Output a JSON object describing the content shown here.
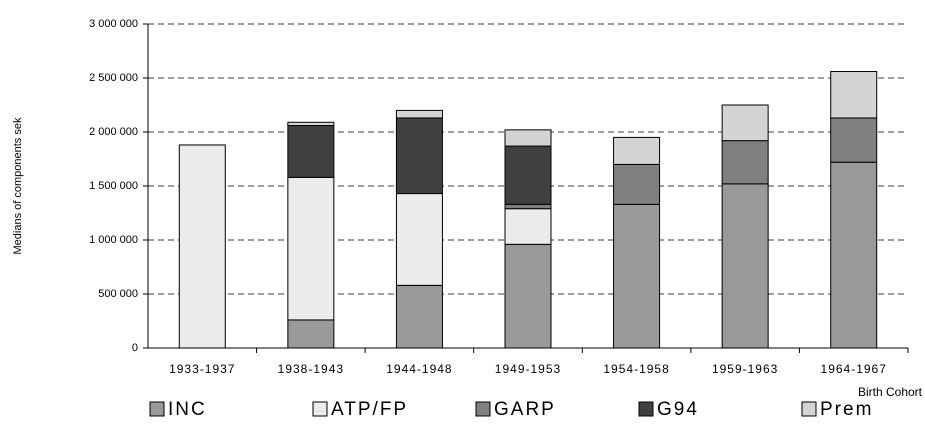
{
  "chart_data": {
    "type": "stacked-bar",
    "x_label": "Birth Cohort",
    "y_label": "Medians of components sek",
    "categories": [
      "1933-1937",
      "1938-1943",
      "1944-1948",
      "1949-1953",
      "1954-1958",
      "1959-1963",
      "1964-1967"
    ],
    "series": [
      {
        "name": "INC",
        "color": "#999999",
        "values": [
          0,
          260000,
          580000,
          960000,
          1330000,
          1520000,
          1720000
        ]
      },
      {
        "name": "ATP/FP",
        "color": "#ebebeb",
        "values": [
          1880000,
          1320000,
          850000,
          330000,
          0,
          0,
          0
        ]
      },
      {
        "name": "GARP",
        "color": "#808080",
        "values": [
          0,
          0,
          0,
          40000,
          370000,
          400000,
          410000
        ]
      },
      {
        "name": "G94",
        "color": "#404040",
        "values": [
          0,
          480000,
          700000,
          540000,
          0,
          0,
          0
        ]
      },
      {
        "name": "Prem",
        "color": "#d4d4d4",
        "values": [
          0,
          30000,
          70000,
          150000,
          250000,
          330000,
          430000
        ]
      }
    ],
    "ylim": [
      0,
      3000000
    ],
    "yticks": [
      0,
      {
        "value": 500000,
        "label": "500 000"
      },
      {
        "value": 1000000,
        "label": "1 000 000"
      },
      {
        "value": 1500000,
        "label": "1 500 000"
      },
      {
        "value": 2000000,
        "label": "2 000 000"
      },
      {
        "value": 2500000,
        "label": "2 500 000"
      },
      {
        "value": 3000000,
        "label": "3 000 000"
      }
    ],
    "grid": true
  }
}
